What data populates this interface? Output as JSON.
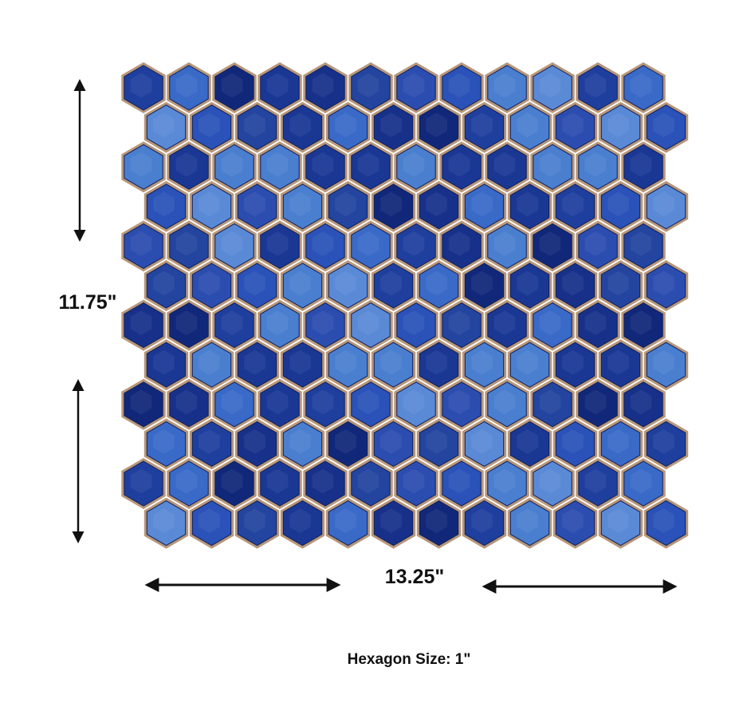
{
  "height_label": "11.75\"",
  "width_label": "13.25\"",
  "caption": "Hexagon Size: 1\""
}
